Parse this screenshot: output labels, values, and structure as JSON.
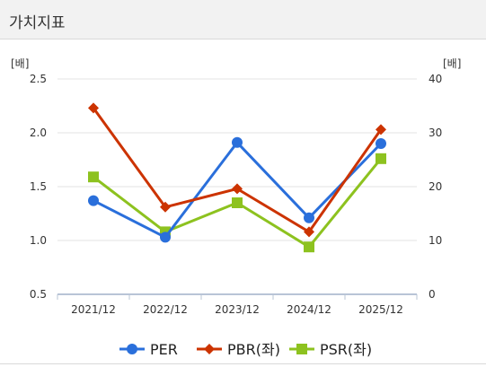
{
  "header": {
    "title": "가치지표"
  },
  "chart_data": {
    "type": "line",
    "categories": [
      "2021/12",
      "2022/12",
      "2023/12",
      "2024/12",
      "2025/12"
    ],
    "left_axis": {
      "label": "[배]",
      "min": 0.5,
      "max": 2.5,
      "ticks": [
        "0.5",
        "1.0",
        "1.5",
        "2.0",
        "2.5"
      ]
    },
    "right_axis": {
      "label": "[배]",
      "min": 0,
      "max": 40,
      "ticks": [
        "0",
        "10",
        "20",
        "30",
        "40"
      ]
    },
    "series": [
      {
        "name": "PER",
        "axis": "left",
        "color": "#2a6fdb",
        "marker": "circle",
        "values": [
          1.37,
          1.03,
          1.91,
          1.21,
          1.9
        ]
      },
      {
        "name": "PBR(좌)",
        "axis": "left",
        "color": "#cc3300",
        "marker": "diamond",
        "values": [
          2.23,
          1.31,
          1.48,
          1.08,
          2.03
        ]
      },
      {
        "name": "PSR(좌)",
        "axis": "left",
        "color": "#8dc21f",
        "marker": "square",
        "values": [
          1.59,
          1.08,
          1.35,
          0.94,
          1.76
        ]
      }
    ],
    "grid": true,
    "legend_position": "bottom"
  }
}
